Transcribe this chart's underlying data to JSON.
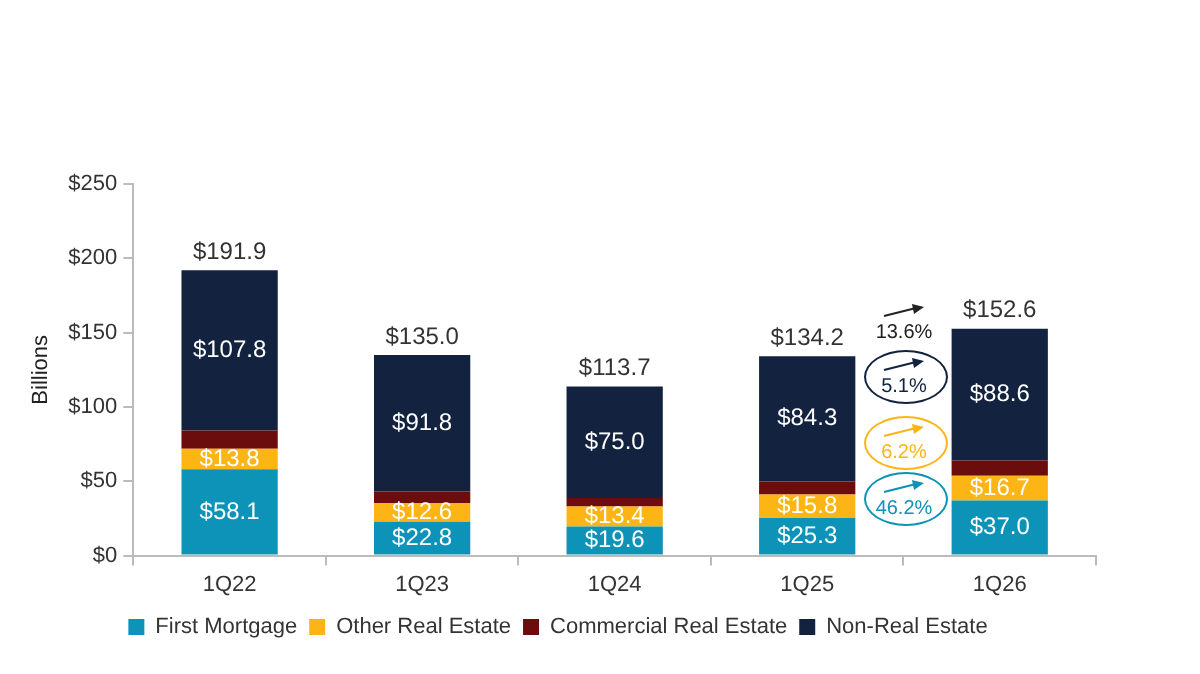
{
  "chart_data": {
    "type": "bar",
    "stacked": true,
    "ylabel": "Billions",
    "categories": [
      "1Q22",
      "1Q23",
      "1Q24",
      "1Q25",
      "1Q26"
    ],
    "series": [
      {
        "name": "First Mortgage",
        "color": "#0e93b8",
        "values": [
          58.1,
          22.8,
          19.6,
          25.3,
          37.0
        ],
        "value_labels": [
          "$58.1",
          "$22.8",
          "$19.6",
          "$25.3",
          "$37.0"
        ]
      },
      {
        "name": "Other Real Estate",
        "color": "#fdb515",
        "values": [
          13.8,
          12.6,
          13.4,
          15.8,
          16.7
        ],
        "value_labels": [
          "$13.8",
          "$12.6",
          "$13.4",
          "$15.8",
          "$16.7"
        ]
      },
      {
        "name": "Commercial Real Estate",
        "color": "#6b0d0d",
        "values": [
          12.2,
          7.8,
          5.7,
          8.8,
          10.3
        ]
      },
      {
        "name": "Non-Real Estate",
        "color": "#13233f",
        "values": [
          107.8,
          91.8,
          75.0,
          84.3,
          88.6
        ],
        "value_labels": [
          "$107.8",
          "$91.8",
          "$75.0",
          "$84.3",
          "$88.6"
        ]
      }
    ],
    "totals": [
      "$191.9",
      "$135.0",
      "$113.7",
      "$134.2",
      "$152.6"
    ],
    "ylim": [
      0,
      250
    ],
    "yticks": [
      {
        "value": 0,
        "label": "$0"
      },
      {
        "value": 50,
        "label": "$50"
      },
      {
        "value": 100,
        "label": "$100"
      },
      {
        "value": 150,
        "label": "$150"
      },
      {
        "value": 200,
        "label": "$200"
      },
      {
        "value": 250,
        "label": "$250"
      }
    ],
    "grid": false,
    "legend": "bottom",
    "annotations": [
      "13.6%",
      "5.1%",
      "6.2%",
      "46.2%"
    ]
  }
}
